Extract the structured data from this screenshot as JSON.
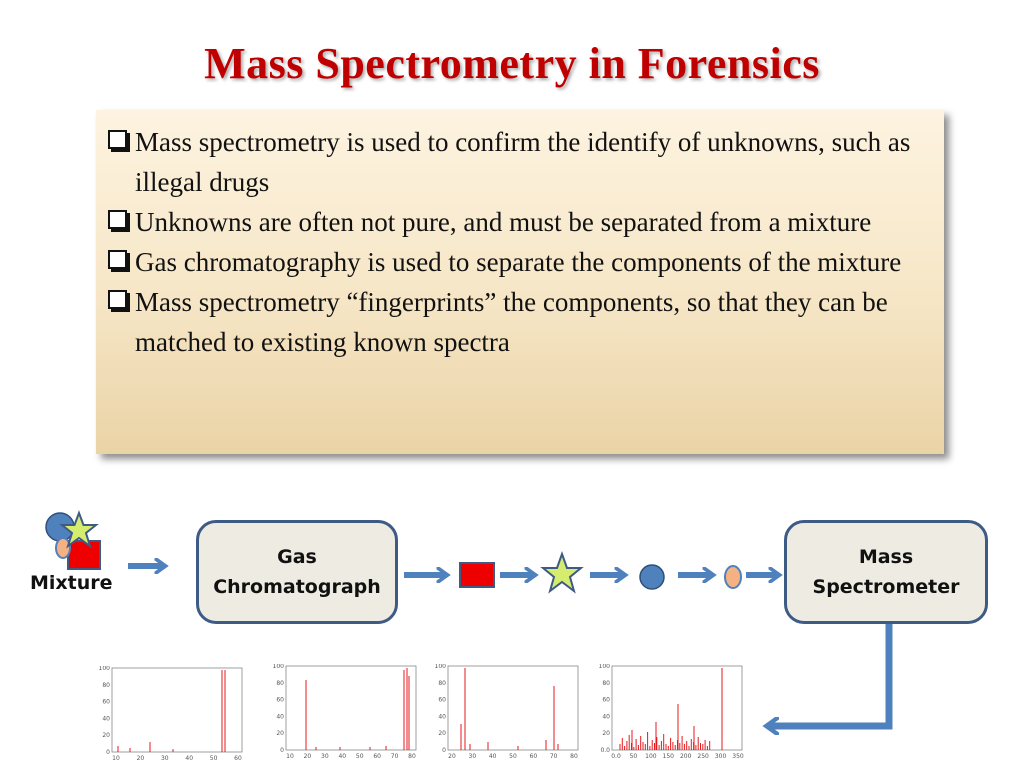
{
  "slide": {
    "title": "Mass Spectrometry in Forensics",
    "bullets": [
      "Mass spectrometry is used to confirm the identify of unknowns, such as illegal drugs",
      "Unknowns are often not pure, and must be separated from a mixture",
      "Gas chromatography is used to separate the components of  the mixture",
      "Mass spectrometry “fingerprints” the components, so that they can be matched to existing known spectra"
    ]
  },
  "diagram": {
    "mixture_label": "Mixture",
    "gc_label_line1": "Gas",
    "gc_label_line2": "Chromatograph",
    "ms_label_line1": "Mass",
    "ms_label_line2": "Spectrometer",
    "components": [
      "red-square",
      "yellow-star",
      "blue-circle",
      "orange-oval"
    ],
    "colors": {
      "arrow": "#4f81bd",
      "box_border": "#3e5b86",
      "box_fill": "#eeece2",
      "square": "#ee0000",
      "star": "#d6ec6f",
      "circle": "#4f81bd",
      "oval": "#f4b183",
      "spectrum_line": "#e41a1c"
    }
  },
  "spectra": {
    "spec1": {
      "y_ticks": [
        "100",
        "80",
        "60",
        "40",
        "20",
        "0"
      ],
      "x_ticks": [
        "10",
        "20",
        "30",
        "40",
        "50",
        "60"
      ]
    },
    "spec2": {
      "y_ticks": [
        "100",
        "80",
        "60",
        "40",
        "20",
        "0"
      ],
      "x_ticks": [
        "10",
        "20",
        "30",
        "40",
        "50",
        "60",
        "70",
        "80"
      ]
    },
    "spec3": {
      "y_ticks": [
        "100",
        "80",
        "60",
        "40",
        "20",
        "0"
      ],
      "x_ticks": [
        "20",
        "30",
        "40",
        "50",
        "60",
        "70",
        "80"
      ]
    },
    "spec4": {
      "y_ticks": [
        "100",
        "80",
        "60",
        "40",
        "20",
        "0.0"
      ],
      "x_ticks": [
        "0.0",
        "50",
        "100",
        "150",
        "200",
        "250",
        "300",
        "350"
      ]
    }
  }
}
